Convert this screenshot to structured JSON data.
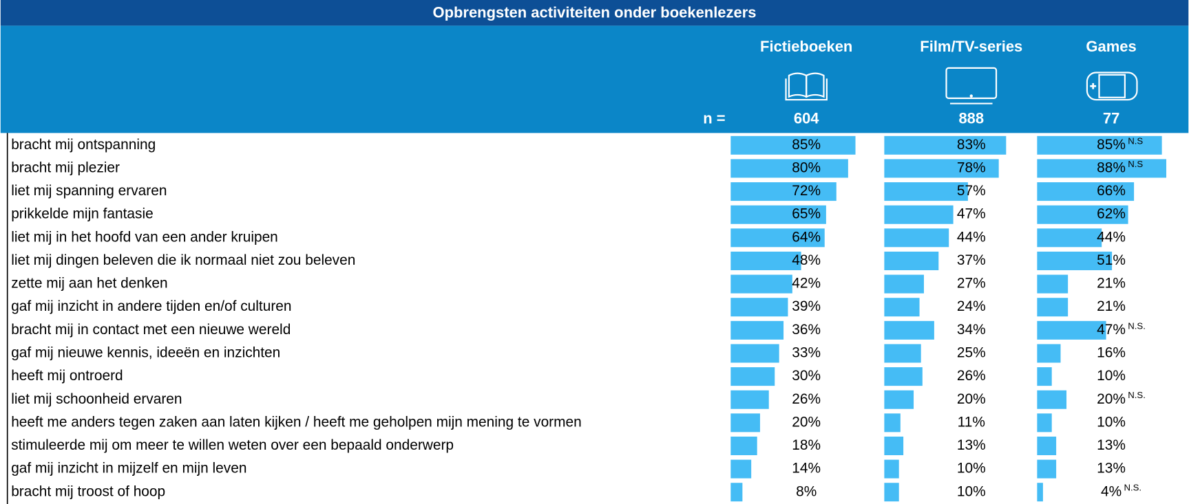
{
  "chart_data": {
    "type": "bar",
    "title": "Opbrengsten activiteiten onder boekenlezers",
    "n_label": "n =",
    "color": "#45bcf5",
    "categories": [
      "bracht mij ontspanning",
      "bracht mij plezier",
      "liet mij spanning ervaren",
      "prikkelde mijn fantasie",
      "liet mij in het hoofd van een ander kruipen",
      "liet mij dingen beleven die ik normaal niet zou beleven",
      "zette mij aan het denken",
      "gaf mij inzicht in andere tijden en/of culturen",
      "bracht mij in contact met een nieuwe wereld",
      "gaf mij nieuwe kennis, ideeën en inzichten",
      "heeft mij ontroerd",
      "liet mij schoonheid ervaren",
      "heeft me anders tegen zaken aan laten kijken / heeft me geholpen mijn mening te vormen",
      "stimuleerde mij om meer te willen weten over een bepaald onderwerp",
      "gaf mij inzicht in mijzelf en mijn leven",
      "bracht mij troost of hoop"
    ],
    "series": [
      {
        "name": "Fictieboeken",
        "n": 604,
        "values": [
          85,
          80,
          72,
          65,
          64,
          48,
          42,
          39,
          36,
          33,
          30,
          26,
          20,
          18,
          14,
          8
        ],
        "value_labels": [
          "85%",
          "80%",
          "72%",
          "65%",
          "64%",
          "48%",
          "42%",
          "39%",
          "36%",
          "33%",
          "30%",
          "26%",
          "20%",
          "18%",
          "14%",
          "8%"
        ]
      },
      {
        "name": "Film/TV-series",
        "n": 888,
        "values": [
          83,
          78,
          57,
          47,
          44,
          37,
          27,
          24,
          34,
          25,
          26,
          20,
          11,
          13,
          10,
          10
        ],
        "value_labels": [
          "83%",
          "78%",
          "57%",
          "47%",
          "44%",
          "37%",
          "27%",
          "24%",
          "34%",
          "25%",
          "26%",
          "20%",
          "11%",
          "13%",
          "10%",
          "10%"
        ]
      },
      {
        "name": "Games",
        "n": 77,
        "values": [
          85,
          88,
          66,
          62,
          44,
          51,
          21,
          21,
          47,
          16,
          10,
          20,
          10,
          13,
          13,
          4
        ],
        "value_labels": [
          "85%",
          "88%",
          "66%",
          "62%",
          "44%",
          "51%",
          "21%",
          "21%",
          "47%",
          "16%",
          "10%",
          "20%",
          "10%",
          "13%",
          "13%",
          "4%"
        ],
        "notes": [
          "N.S",
          "N.S",
          null,
          null,
          null,
          null,
          null,
          null,
          "N.S.",
          null,
          null,
          "N.S.",
          null,
          null,
          null,
          "N.S."
        ]
      }
    ]
  }
}
